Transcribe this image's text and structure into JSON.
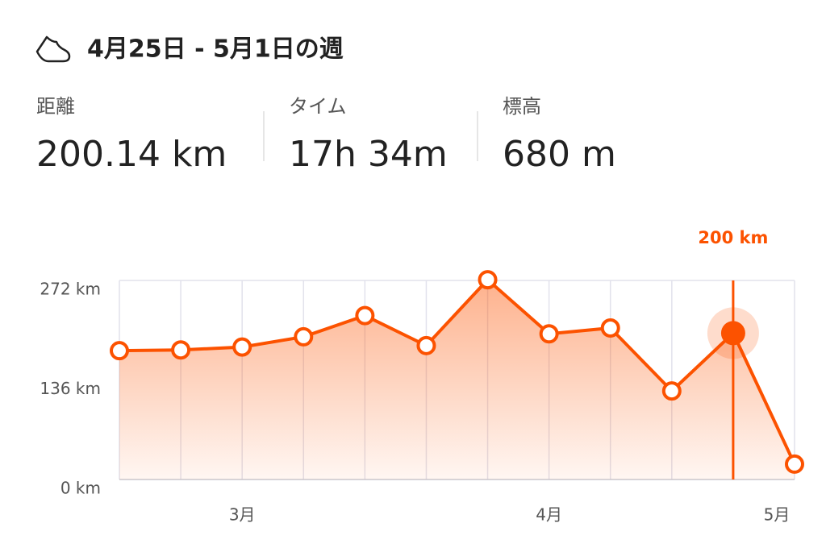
{
  "header": {
    "title": "4月25日 - 5月1日の週"
  },
  "stats": [
    {
      "label": "距離",
      "value": "200.14 km"
    },
    {
      "label": "タイム",
      "value": "17h 34m"
    },
    {
      "label": "標高",
      "value": "680 m"
    }
  ],
  "chart_data": {
    "type": "line",
    "categories": [
      null,
      null,
      "3月",
      null,
      null,
      null,
      null,
      "4月",
      null,
      null,
      null,
      "5月"
    ],
    "series": [
      {
        "color": "#fc5200",
        "values": [
          176,
          177,
          181,
          195,
          224,
          183,
          273,
          199,
          207,
          121,
          200,
          21
        ]
      }
    ],
    "ylim": [
      0,
      272
    ],
    "yticks": [
      {
        "value": 0,
        "label": "0 km"
      },
      {
        "value": 136,
        "label": "136 km"
      },
      {
        "value": 272,
        "label": "272 km"
      }
    ],
    "highlight_index": 10,
    "highlight_label": "200 km",
    "grid": true
  }
}
